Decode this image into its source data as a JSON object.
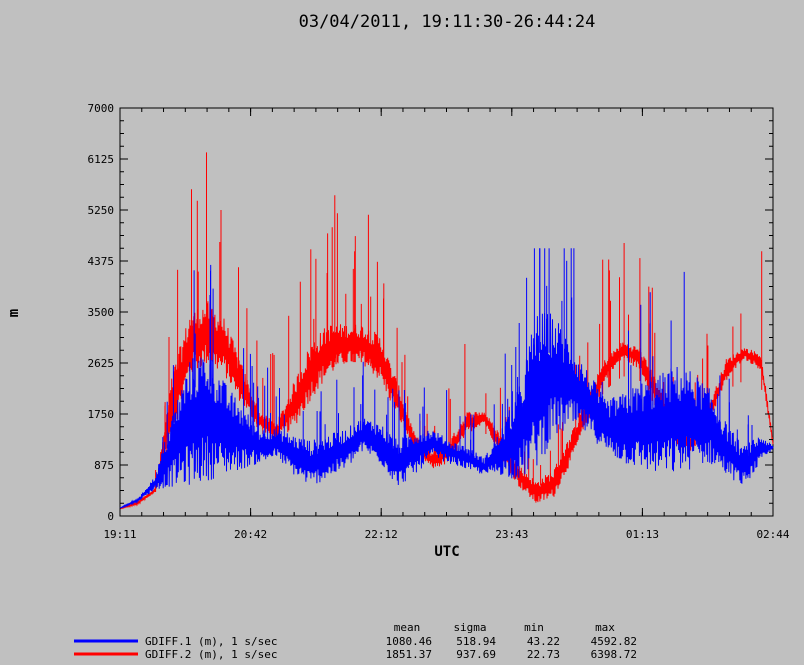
{
  "chart_data": {
    "type": "line",
    "title": "03/04/2011, 19:11:30-26:44:24",
    "xlabel": "UTC",
    "ylabel": "m",
    "x_ticks": [
      "19:11",
      "20:42",
      "22:12",
      "23:43",
      "01:13",
      "02:44"
    ],
    "y_ticks": [
      "0",
      "875",
      "1750",
      "2625",
      "3500",
      "4375",
      "5250",
      "6125",
      "7000"
    ],
    "xlim_hours": [
      19.19,
      26.74
    ],
    "ylim": [
      0,
      7000
    ],
    "grid": false,
    "legend_position": "bottom-left",
    "stats_headers": [
      "mean",
      "sigma",
      "min",
      "max"
    ],
    "series": [
      {
        "name": "GDIFF.1 (m), 1 s/sec",
        "color": "#0000ff",
        "stats": [
          "1080.46",
          "518.94",
          "43.22",
          "4592.82"
        ],
        "x": [
          19.19,
          19.4,
          19.6,
          19.8,
          20.0,
          20.2,
          20.4,
          20.6,
          20.8,
          21.0,
          21.2,
          21.4,
          21.6,
          21.8,
          22.0,
          22.2,
          22.4,
          22.6,
          22.8,
          23.0,
          23.2,
          23.4,
          23.6,
          23.8,
          24.0,
          24.2,
          24.4,
          24.6,
          24.8,
          25.0,
          25.2,
          25.4,
          25.6,
          25.8,
          26.0,
          26.2,
          26.4,
          26.6,
          26.74
        ],
        "y_low": [
          130,
          250,
          450,
          500,
          520,
          600,
          700,
          800,
          900,
          1000,
          700,
          500,
          650,
          800,
          1100,
          900,
          500,
          700,
          1000,
          900,
          800,
          700,
          700,
          600,
          800,
          1300,
          1500,
          1400,
          1100,
          900,
          800,
          700,
          700,
          800,
          900,
          700,
          500,
          900,
          1150
        ],
        "y_high": [
          140,
          300,
          700,
          1800,
          2700,
          2900,
          2300,
          1900,
          1500,
          1500,
          1400,
          1300,
          1400,
          1500,
          1700,
          1600,
          1300,
          1500,
          1500,
          1300,
          1200,
          1000,
          1500,
          2200,
          3500,
          3500,
          3000,
          2500,
          2000,
          2100,
          2300,
          2400,
          2600,
          2500,
          2200,
          1600,
          1200,
          1400,
          1200
        ]
      },
      {
        "name": "GDIFF.2 (m), 1 s/sec",
        "color": "#ff0000",
        "stats": [
          "1851.37",
          "937.69",
          "22.73",
          "6398.72"
        ],
        "x": [
          19.19,
          19.4,
          19.6,
          19.8,
          20.0,
          20.2,
          20.4,
          20.6,
          20.8,
          21.0,
          21.2,
          21.4,
          21.6,
          21.8,
          22.0,
          22.2,
          22.4,
          22.6,
          22.8,
          23.0,
          23.2,
          23.4,
          23.6,
          23.8,
          24.0,
          24.2,
          24.4,
          24.6,
          24.8,
          25.0,
          25.2,
          25.4,
          25.6,
          25.8,
          26.0,
          26.2,
          26.4,
          26.6,
          26.74
        ],
        "y_low": [
          120,
          200,
          400,
          1400,
          2400,
          2600,
          2400,
          1900,
          1500,
          1300,
          1500,
          2000,
          2400,
          2600,
          2600,
          2300,
          1700,
          1100,
          800,
          900,
          1400,
          1600,
          1000,
          500,
          200,
          300,
          900,
          1600,
          2300,
          2700,
          2500,
          1900,
          1200,
          1100,
          1600,
          2300,
          2700,
          2500,
          1200
        ],
        "y_high": [
          130,
          250,
          500,
          2500,
          3500,
          3700,
          3400,
          2600,
          1800,
          1600,
          2300,
          3000,
          3300,
          3300,
          3300,
          3100,
          2300,
          1400,
          1100,
          1300,
          1800,
          1800,
          1400,
          900,
          600,
          800,
          1400,
          2100,
          2700,
          3000,
          2900,
          2300,
          1500,
          1400,
          1900,
          2700,
          2900,
          2800,
          1300
        ]
      }
    ]
  }
}
